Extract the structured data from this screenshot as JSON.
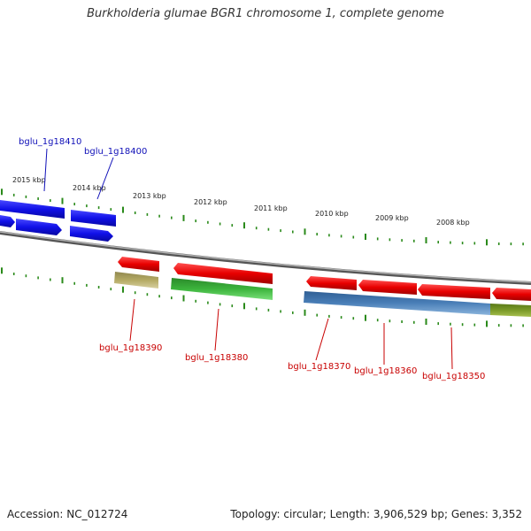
{
  "title": "Burkholderia glumae BGR1 chromosome 1, complete genome",
  "footer": {
    "accession": "Accession: NC_012724",
    "summary": "Topology: circular; Length: 3,906,529 bp; Genes: 3,352"
  },
  "colors": {
    "forward_gene": "#1010e8",
    "reverse_gene": "#e80000",
    "backbone": "#8a8a8a",
    "tick": "#2a8a1a",
    "forward_label": "#1010b8",
    "reverse_label": "#c80000",
    "cds_green": "#3cb43c",
    "cds_blue": "#4a7fb8",
    "cds_olive": "#7a9a28",
    "cds_khaki": "#b4aa64"
  },
  "ticks": [
    {
      "label": "2015 kbp"
    },
    {
      "label": "2014 kbp"
    },
    {
      "label": "2013 kbp"
    },
    {
      "label": "2012 kbp"
    },
    {
      "label": "2011 kbp"
    },
    {
      "label": "2010 kbp"
    },
    {
      "label": "2009 kbp"
    },
    {
      "label": "2008 kbp"
    }
  ],
  "genes": [
    {
      "label": "bglu_1g18410",
      "strand": "forward"
    },
    {
      "label": "bglu_1g18400",
      "strand": "forward"
    },
    {
      "label": "bglu_1g18390",
      "strand": "reverse"
    },
    {
      "label": "bglu_1g18380",
      "strand": "reverse"
    },
    {
      "label": "bglu_1g18370",
      "strand": "reverse"
    },
    {
      "label": "bglu_1g18360",
      "strand": "reverse"
    },
    {
      "label": "bglu_1g18350",
      "strand": "reverse"
    }
  ]
}
